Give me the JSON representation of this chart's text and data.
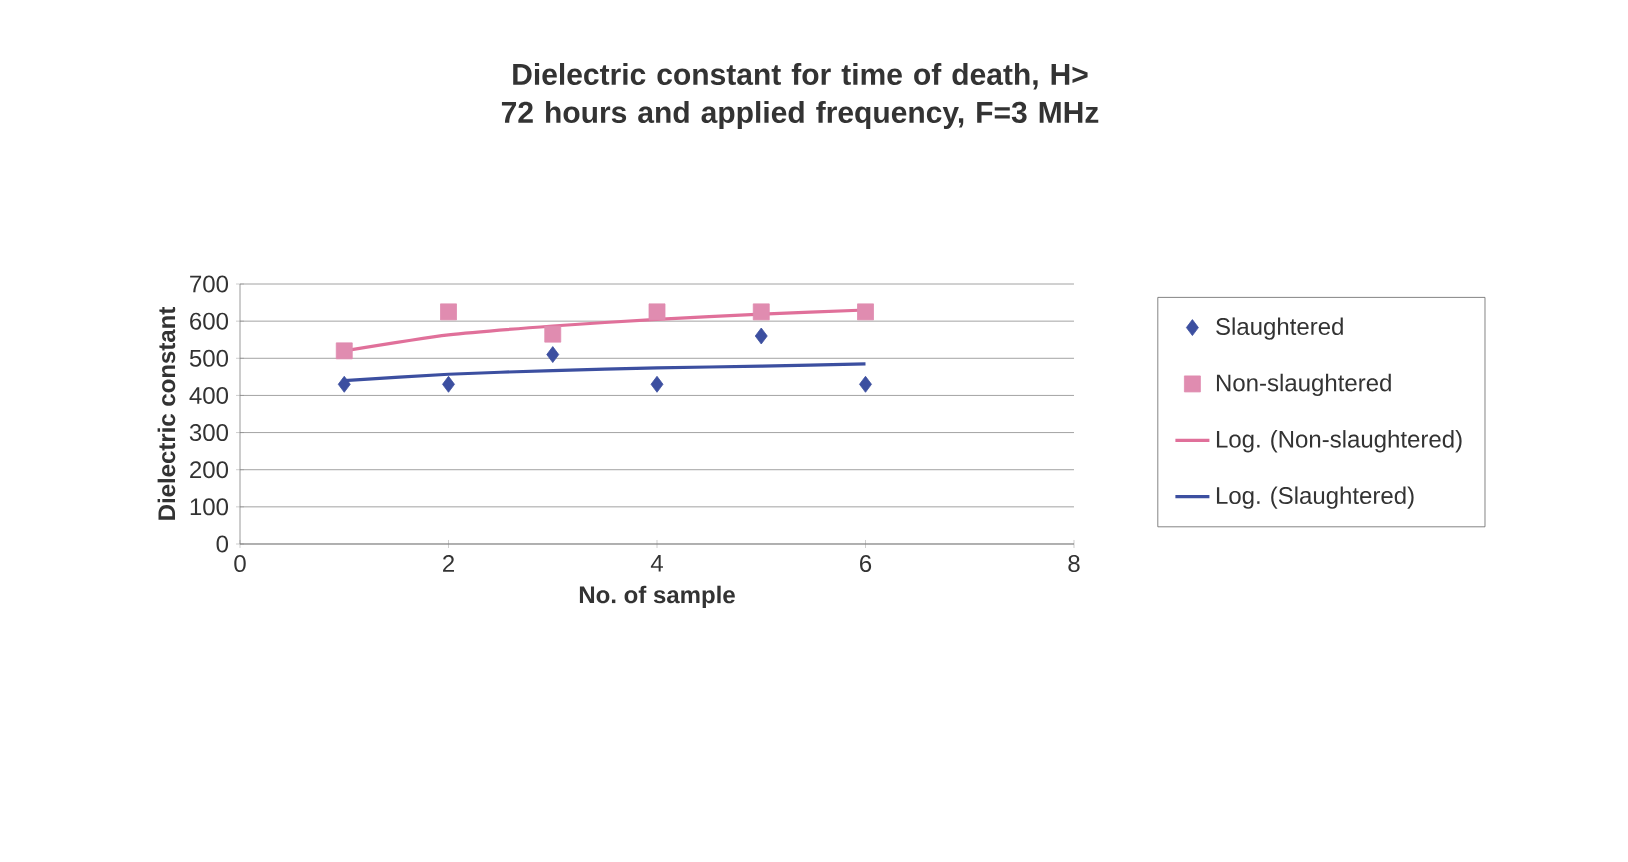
{
  "chart_data": {
    "type": "scatter",
    "title": "Dielectric constant for time of death, H> 72 hours and applied frequency, F=3 MHz",
    "xlabel": "No. of sample",
    "ylabel": "Dielectric constant",
    "x": [
      1,
      2,
      3,
      4,
      5,
      6
    ],
    "series": [
      {
        "name": "Slaughtered",
        "marker": "diamond",
        "color": "#3c4fa0",
        "values": [
          430,
          430,
          510,
          430,
          560,
          430
        ]
      },
      {
        "name": "Non-slaughtered",
        "marker": "square",
        "color": "#e08cb0",
        "values": [
          520,
          625,
          565,
          625,
          625,
          625
        ]
      },
      {
        "name": "Log. (Non-slaughtered)",
        "type": "line",
        "color": "#e0709a",
        "values": [
          520,
          563,
          587,
          605,
          619,
          630
        ]
      },
      {
        "name": "Log. (Slaughtered)",
        "type": "line",
        "color": "#3c4fa0",
        "values": [
          440,
          457,
          467,
          474,
          479,
          485
        ]
      }
    ],
    "xlim": [
      0,
      8
    ],
    "xticks": [
      0,
      2,
      4,
      6,
      8
    ],
    "ylim": [
      0,
      700
    ],
    "yticks": [
      0,
      100,
      200,
      300,
      400,
      500,
      600,
      700
    ],
    "grid": "y",
    "legend": "right"
  }
}
